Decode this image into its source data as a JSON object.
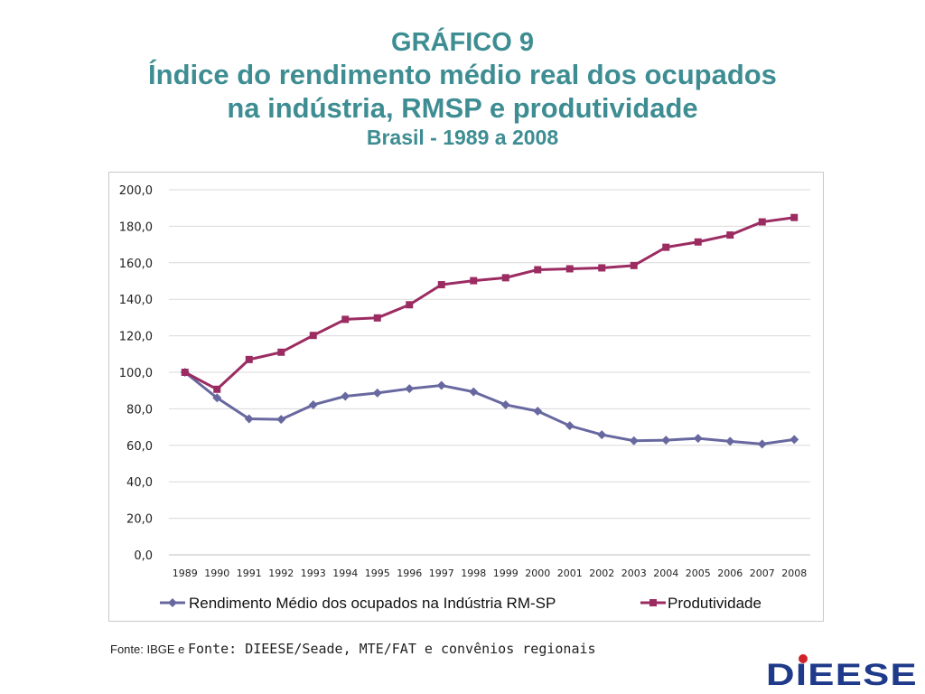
{
  "title": {
    "line1": "GRÁFICO 9",
    "line2": "Índice do rendimento médio real dos ocupados",
    "line3": "na indústria, RMSP e  produtividade",
    "line4": "Brasil - 1989 a 2008"
  },
  "source": {
    "part1": "Fonte: IBGE e ",
    "part2": "Fonte: DIEESE/Seade, MTE/FAT e convênios regionais"
  },
  "logo": {
    "text": "DIEESE"
  },
  "colors": {
    "title": "#3d8d92",
    "series_rendimento": "#6868a0",
    "series_produtividade": "#9b2c62",
    "gridline": "#d9d9d9"
  },
  "chart_data": {
    "type": "line",
    "x": [
      "1989",
      "1990",
      "1991",
      "1992",
      "1993",
      "1994",
      "1995",
      "1996",
      "1997",
      "1998",
      "1999",
      "2000",
      "2001",
      "2002",
      "2003",
      "2004",
      "2005",
      "2006",
      "2007",
      "2008"
    ],
    "yticks": [
      "0,0",
      "20,0",
      "40,0",
      "60,0",
      "80,0",
      "100,0",
      "120,0",
      "140,0",
      "160,0",
      "180,0",
      "200,0"
    ],
    "ylim": [
      0,
      200
    ],
    "grid": true,
    "legend_position": "bottom",
    "series": [
      {
        "name": "Rendimento Médio dos ocupados na Indústria RM-SP",
        "marker": "diamond",
        "color": "#6868a0",
        "values": [
          100.0,
          86.0,
          74.5,
          74.2,
          82.2,
          86.9,
          88.7,
          91.0,
          92.8,
          89.3,
          82.2,
          78.7,
          70.7,
          65.8,
          62.5,
          62.8,
          63.8,
          62.2,
          60.7,
          63.2
        ]
      },
      {
        "name": "Produtividade",
        "marker": "square",
        "color": "#9b2c62",
        "values": [
          100.0,
          90.7,
          107.0,
          111.0,
          120.2,
          129.0,
          129.8,
          137.0,
          148.0,
          150.2,
          151.8,
          156.2,
          156.7,
          157.2,
          158.5,
          168.5,
          171.4,
          175.2,
          182.4,
          184.8
        ]
      }
    ]
  }
}
